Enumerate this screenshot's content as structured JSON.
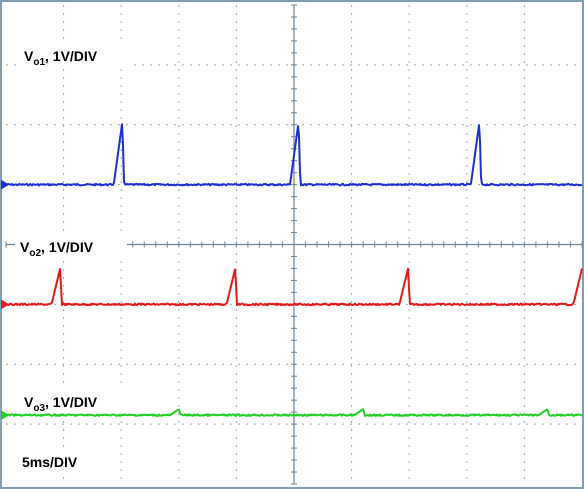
{
  "chart_data": {
    "type": "line",
    "x_divisions": 10,
    "y_divisions": 8,
    "grid": true,
    "time_scale": "5ms/DIV",
    "x_unit": "ms",
    "x_range": [
      0,
      50
    ],
    "y_unit": "div",
    "y_range": [
      -4,
      4
    ],
    "series": [
      {
        "name_main": "V",
        "name_sub": "o1",
        "name_rest": ", 1V/DIV",
        "color": "#1f2fd6",
        "baseline_div": 1.0,
        "spike_height_div": 1.05,
        "spike_times_ms": [
          10.1,
          25.4,
          41.1
        ]
      },
      {
        "name_main": "V",
        "name_sub": "o2",
        "name_rest": ", 1V/DIV",
        "color": "#e3191c",
        "baseline_div": -1.0,
        "spike_height_div": 0.6,
        "spike_times_ms": [
          4.7,
          19.9,
          34.9,
          50.0
        ]
      },
      {
        "name_main": "V",
        "name_sub": "o3",
        "name_rest": ", 1V/DIV",
        "color": "#22d022",
        "baseline_div": -2.85,
        "spike_height_div": 0.1,
        "spike_times_ms": [
          15.0,
          31.0,
          47.0
        ]
      }
    ]
  }
}
